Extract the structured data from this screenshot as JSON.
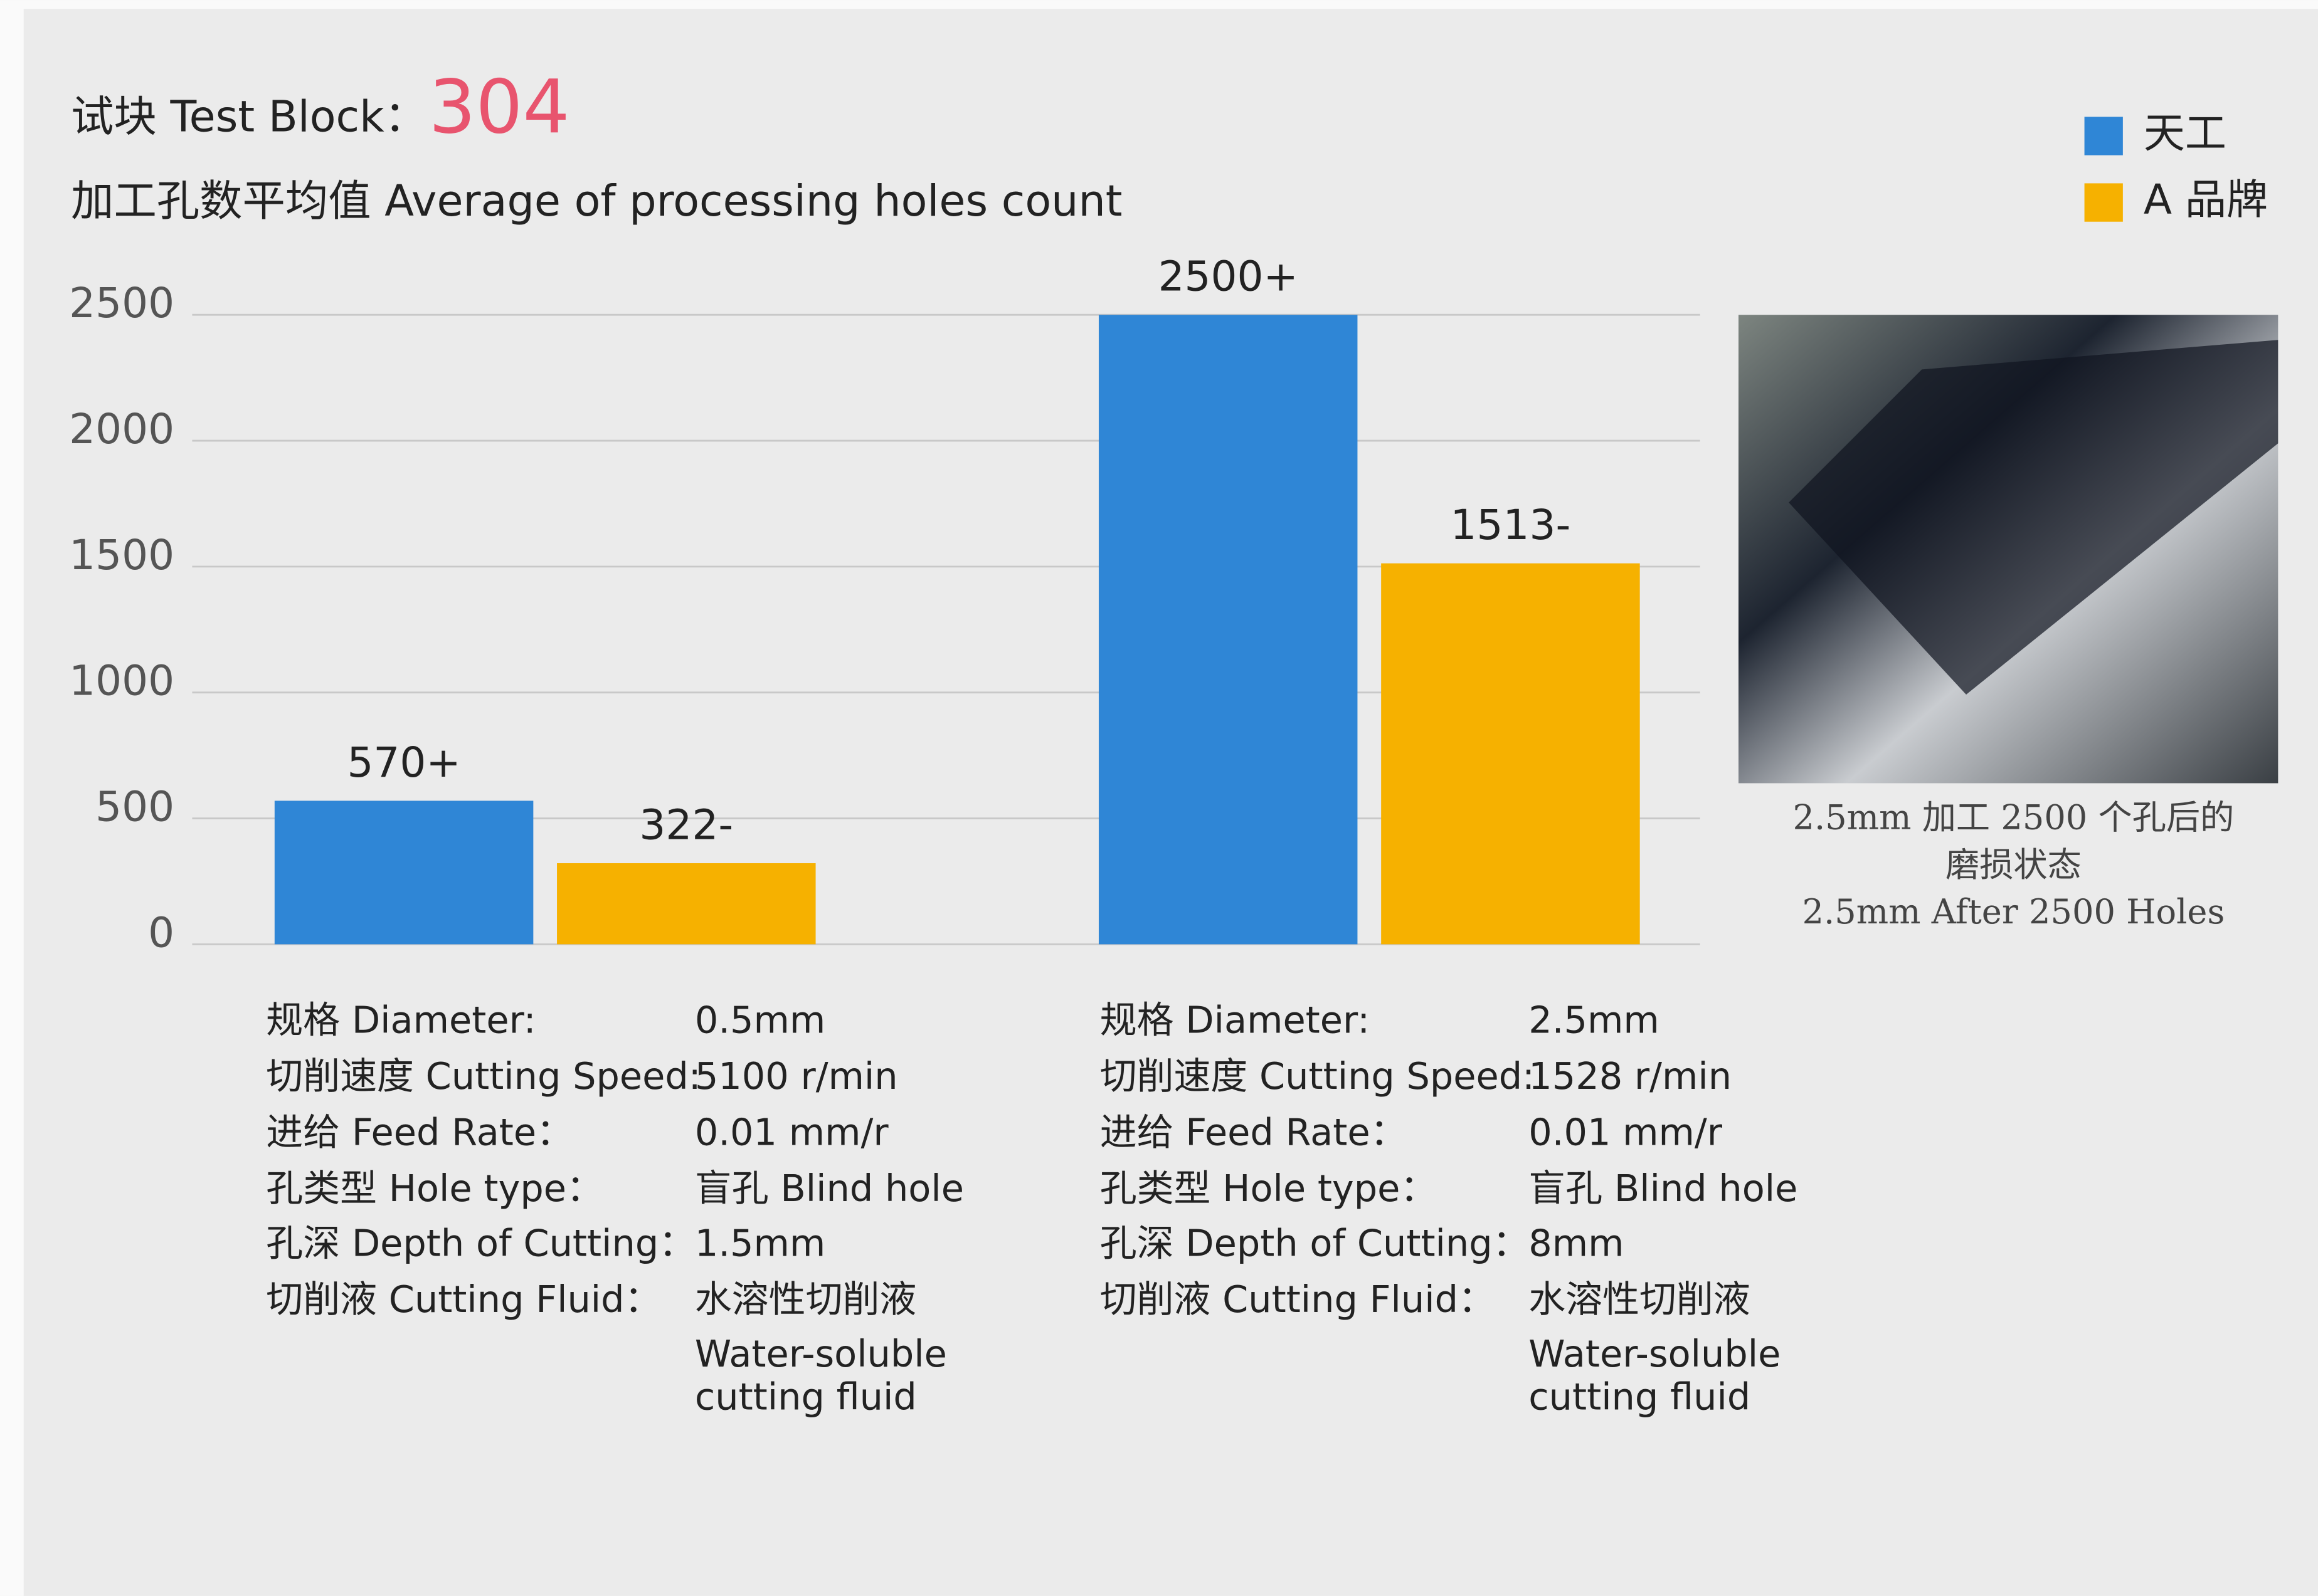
{
  "chart_data": {
    "type": "bar",
    "title": "试块 Test Block：",
    "block_number": "304",
    "subtitle": "加工孔数平均值 Average of processing holes count",
    "categories": [
      null,
      null
    ],
    "series": [
      {
        "name": "天工",
        "color": "#2f86d6",
        "values": [
          570,
          2500
        ],
        "value_labels": [
          "570+",
          "2500+"
        ]
      },
      {
        "name": "A 品牌",
        "color": "#f6b100",
        "values": [
          322,
          1513
        ],
        "value_labels": [
          "322-",
          "1513-"
        ]
      }
    ],
    "ylim": [
      0,
      2500
    ],
    "yticks": [
      0,
      500,
      1000,
      1500,
      2000,
      2500
    ],
    "grid": true,
    "legend": "top-right"
  },
  "specs": [
    {
      "rows": [
        {
          "label": "规格 Diameter:",
          "value": [
            "0.5mm"
          ]
        },
        {
          "label": "切削速度 Cutting Speed:",
          "value": [
            "5100 r/min"
          ]
        },
        {
          "label": "进给 Feed Rate：",
          "value": [
            "0.01 mm/r"
          ]
        },
        {
          "label": "孔类型 Hole type：",
          "value": [
            "盲孔 Blind hole"
          ]
        },
        {
          "label": "孔深 Depth of Cutting：",
          "value": [
            "1.5mm"
          ]
        },
        {
          "label": "切削液 Cutting Fluid：",
          "value": [
            "水溶性切削液",
            "Water-soluble",
            "cutting fluid"
          ]
        }
      ]
    },
    {
      "rows": [
        {
          "label": "规格 Diameter:",
          "value": [
            "2.5mm"
          ]
        },
        {
          "label": "切削速度 Cutting Speed:",
          "value": [
            "1528 r/min"
          ]
        },
        {
          "label": "进给 Feed Rate：",
          "value": [
            "0.01 mm/r"
          ]
        },
        {
          "label": "孔类型 Hole type：",
          "value": [
            "盲孔 Blind hole"
          ]
        },
        {
          "label": "孔深 Depth of Cutting：",
          "value": [
            "8mm"
          ]
        },
        {
          "label": "切削液 Cutting Fluid：",
          "value": [
            "水溶性切削液",
            "Water-soluble",
            "cutting fluid"
          ]
        }
      ]
    }
  ],
  "photo_caption": [
    "2.5mm 加工 2500 个孔后的",
    "磨损状态",
    "2.5mm After 2500 Holes"
  ]
}
